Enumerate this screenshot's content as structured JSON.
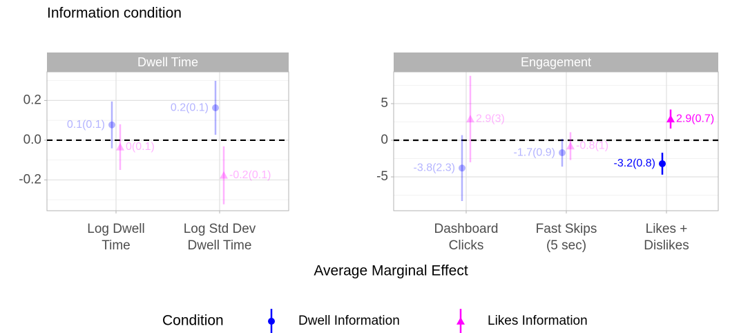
{
  "title": "Information condition",
  "x_label": "Average Marginal Effect",
  "legend": {
    "title": "Condition",
    "position": "bottom"
  },
  "chart_data": [
    {
      "type": "pointrange",
      "facet": "Dwell Time",
      "categories": [
        [
          "Log Dwell",
          "Time"
        ],
        [
          "Log Std Dev",
          "Dwell Time"
        ]
      ],
      "ylim": [
        -0.355,
        0.344
      ],
      "yticks": [
        -0.2,
        {
          "value": 0,
          "label": "0.0"
        },
        0.2
      ],
      "minor_yticks": [
        -0.3,
        -0.1,
        0.1,
        0.3
      ],
      "grid": true,
      "reference_line": 0,
      "series": [
        {
          "name": "Dwell Information",
          "color": "#0000ff",
          "marker": "circle",
          "values": [
            0.077,
            0.163
          ],
          "errors": [
            0.118,
            0.136
          ],
          "alphas": [
            0.3,
            0.3
          ],
          "value_labels": [
            "0.1(0.1)",
            "0.2(0.1)"
          ]
        },
        {
          "name": "Likes Information",
          "color": "#ff00ff",
          "marker": "triangle",
          "values": [
            -0.035,
            -0.177
          ],
          "errors": [
            0.115,
            0.146
          ],
          "alphas": [
            0.3,
            0.3
          ],
          "value_labels": [
            "0(0.1)",
            "-0.2(0.1)"
          ]
        }
      ]
    },
    {
      "type": "pointrange",
      "facet": "Engagement",
      "categories": [
        [
          "Dashboard",
          "Clicks"
        ],
        [
          "Fast Skips",
          "(5 sec)"
        ],
        [
          "Likes +",
          "Dislikes"
        ]
      ],
      "ylim": [
        -9.62,
        9.34
      ],
      "yticks": [
        -5,
        0,
        5
      ],
      "minor_yticks": [
        -7.5,
        -2.5,
        2.5,
        7.5
      ],
      "grid": true,
      "reference_line": 0,
      "series": [
        {
          "name": "Dwell Information",
          "color": "#0000ff",
          "marker": "circle",
          "values": [
            -3.8,
            -1.7,
            -3.2
          ],
          "errors": [
            4.5,
            1.9,
            1.5
          ],
          "alphas": [
            0.3,
            0.3,
            1
          ],
          "value_labels": [
            "-3.8(2.3)",
            "-1.7(0.9)",
            "-3.2(0.8)"
          ]
        },
        {
          "name": "Likes Information",
          "color": "#ff00ff",
          "marker": "triangle",
          "values": [
            2.9,
            -0.8,
            2.9
          ],
          "errors": [
            5.9,
            1.9,
            1.3
          ],
          "alphas": [
            0.3,
            0.3,
            1
          ],
          "value_labels": [
            "2.9(3)",
            "-0.8(1)",
            "2.9(0.7)"
          ]
        }
      ]
    }
  ]
}
